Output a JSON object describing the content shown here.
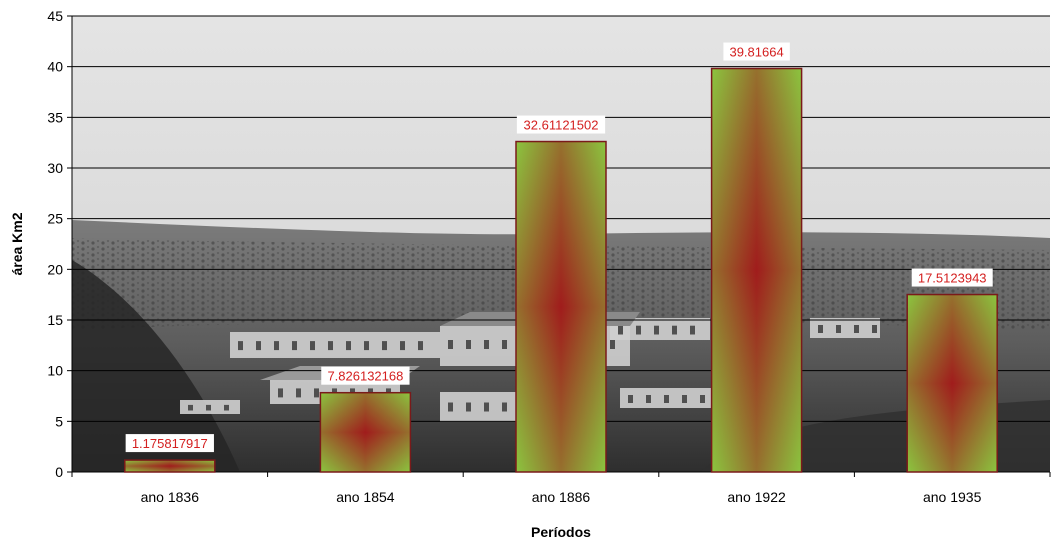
{
  "chart_data": {
    "type": "bar",
    "title": "",
    "xlabel": "Períodos",
    "ylabel": "área Km2",
    "categories": [
      "ano 1836",
      "ano 1854",
      "ano 1886",
      "ano 1922",
      "ano 1935"
    ],
    "values": [
      1.175817917,
      7.826132168,
      32.61121502,
      39.81664,
      17.5123943
    ],
    "value_labels": [
      "1.175817917",
      "7.826132168",
      "32.61121502",
      "39.81664",
      "17.5123943"
    ],
    "ylim": [
      0,
      45
    ],
    "yticks": [
      0,
      5,
      10,
      15,
      20,
      25,
      30,
      35,
      40,
      45
    ],
    "grid": true,
    "legend": "none",
    "colors": {
      "bar_outer": "#8bc53f",
      "bar_inner": "#a01c1c",
      "bar_border": "#7a1a1a",
      "data_label": "#d42020",
      "gridline": "#000000"
    },
    "background": "sepia photograph of a hillside town"
  }
}
